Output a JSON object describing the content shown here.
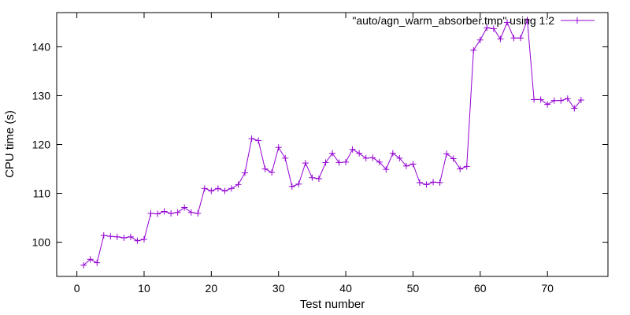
{
  "chart_data": {
    "type": "line",
    "title": "",
    "xlabel": "Test number",
    "ylabel": "CPU time (s)",
    "xlim": [
      -3,
      79
    ],
    "ylim": [
      93,
      147
    ],
    "xticks": [
      0,
      10,
      20,
      30,
      40,
      50,
      60,
      70
    ],
    "yticks": [
      100,
      110,
      120,
      130,
      140
    ],
    "grid": false,
    "legend_position": "top-right",
    "series": [
      {
        "name": "\"auto/agn_warm_absorber.tmp\" using 1:2",
        "color": "#9400d3",
        "marker": "plus",
        "x": [
          1,
          2,
          3,
          4,
          5,
          6,
          7,
          8,
          9,
          10,
          11,
          12,
          13,
          14,
          15,
          16,
          17,
          18,
          19,
          20,
          21,
          22,
          23,
          24,
          25,
          26,
          27,
          28,
          29,
          30,
          31,
          32,
          33,
          34,
          35,
          36,
          37,
          38,
          39,
          40,
          41,
          42,
          43,
          44,
          45,
          46,
          47,
          48,
          49,
          50,
          51,
          52,
          53,
          54,
          55,
          56,
          57,
          58,
          59,
          60,
          61,
          62,
          63,
          64,
          65,
          66,
          67,
          68,
          69,
          70,
          71,
          72,
          73,
          74,
          75
        ],
        "y": [
          95.3,
          96.5,
          95.8,
          101.4,
          101.2,
          101.1,
          100.9,
          101.1,
          100.3,
          100.6,
          105.9,
          105.8,
          106.3,
          105.9,
          106.1,
          107.1,
          106.1,
          105.9,
          111.0,
          110.5,
          111.0,
          110.5,
          111.0,
          111.8,
          114.2,
          121.2,
          120.8,
          115.0,
          114.3,
          119.4,
          117.2,
          111.4,
          111.9,
          116.2,
          113.2,
          113.0,
          116.3,
          118.2,
          116.3,
          116.4,
          119.0,
          118.2,
          117.2,
          117.3,
          116.4,
          114.9,
          118.2,
          117.2,
          115.6,
          116.0,
          112.2,
          111.8,
          112.3,
          112.2,
          118.1,
          117.1,
          115.0,
          115.5,
          139.3,
          141.4,
          143.9,
          143.7,
          141.6,
          145.0,
          141.8,
          141.8,
          145.5,
          129.2,
          129.2,
          128.2,
          129.0,
          129.0,
          129.4,
          127.4,
          129.1
        ]
      }
    ]
  }
}
